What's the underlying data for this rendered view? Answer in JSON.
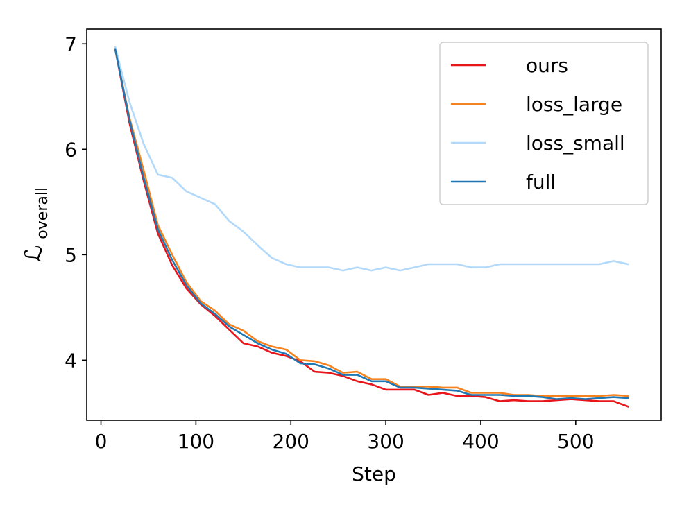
{
  "chart_data": {
    "type": "line",
    "xlabel": "Step",
    "ylabel": "ℒ",
    "ylabel_sub": "overall",
    "xlim": [
      -15,
      590
    ],
    "ylim": [
      3.43,
      7.14
    ],
    "xticks": [
      0,
      100,
      200,
      300,
      400,
      500
    ],
    "yticks": [
      4,
      5,
      6,
      7
    ],
    "xtick_labels": [
      "0",
      "100",
      "200",
      "300",
      "400",
      "500"
    ],
    "ytick_labels": [
      "4",
      "5",
      "6",
      "7"
    ],
    "grid": false,
    "legend_position": "top-right",
    "x": [
      15,
      30,
      45,
      60,
      75,
      90,
      105,
      120,
      135,
      150,
      165,
      180,
      195,
      210,
      225,
      240,
      255,
      270,
      285,
      300,
      315,
      330,
      345,
      360,
      375,
      390,
      405,
      420,
      435,
      450,
      465,
      480,
      495,
      510,
      525,
      540,
      555
    ],
    "series": [
      {
        "name": "ours",
        "color": "#e8161b",
        "values": [
          6.95,
          6.25,
          5.7,
          5.2,
          4.9,
          4.68,
          4.53,
          4.42,
          4.29,
          4.16,
          4.13,
          4.07,
          4.04,
          3.99,
          3.89,
          3.88,
          3.85,
          3.8,
          3.77,
          3.72,
          3.72,
          3.72,
          3.67,
          3.69,
          3.66,
          3.66,
          3.65,
          3.61,
          3.62,
          3.61,
          3.61,
          3.62,
          3.63,
          3.62,
          3.61,
          3.61,
          3.56
        ]
      },
      {
        "name": "loss_large",
        "color": "#f5821f",
        "values": [
          6.95,
          6.3,
          5.8,
          5.28,
          5.0,
          4.74,
          4.56,
          4.47,
          4.34,
          4.28,
          4.18,
          4.13,
          4.1,
          4.0,
          3.99,
          3.95,
          3.88,
          3.89,
          3.82,
          3.82,
          3.75,
          3.75,
          3.75,
          3.74,
          3.74,
          3.69,
          3.69,
          3.69,
          3.67,
          3.67,
          3.66,
          3.66,
          3.66,
          3.66,
          3.66,
          3.67,
          3.66
        ]
      },
      {
        "name": "loss_small",
        "color": "#b3d9fa",
        "values": [
          6.97,
          6.45,
          6.05,
          5.76,
          5.73,
          5.6,
          5.54,
          5.48,
          5.32,
          5.22,
          5.09,
          4.97,
          4.91,
          4.88,
          4.88,
          4.88,
          4.85,
          4.88,
          4.85,
          4.88,
          4.85,
          4.88,
          4.91,
          4.91,
          4.91,
          4.88,
          4.88,
          4.91,
          4.91,
          4.91,
          4.91,
          4.91,
          4.91,
          4.91,
          4.91,
          4.94,
          4.91
        ]
      },
      {
        "name": "full",
        "color": "#1f77b4",
        "values": [
          6.95,
          6.28,
          5.73,
          5.24,
          4.95,
          4.71,
          4.54,
          4.44,
          4.32,
          4.24,
          4.16,
          4.1,
          4.06,
          3.97,
          3.96,
          3.92,
          3.86,
          3.86,
          3.8,
          3.8,
          3.74,
          3.74,
          3.73,
          3.72,
          3.71,
          3.67,
          3.67,
          3.67,
          3.66,
          3.66,
          3.65,
          3.63,
          3.64,
          3.63,
          3.64,
          3.65,
          3.64
        ]
      }
    ]
  }
}
